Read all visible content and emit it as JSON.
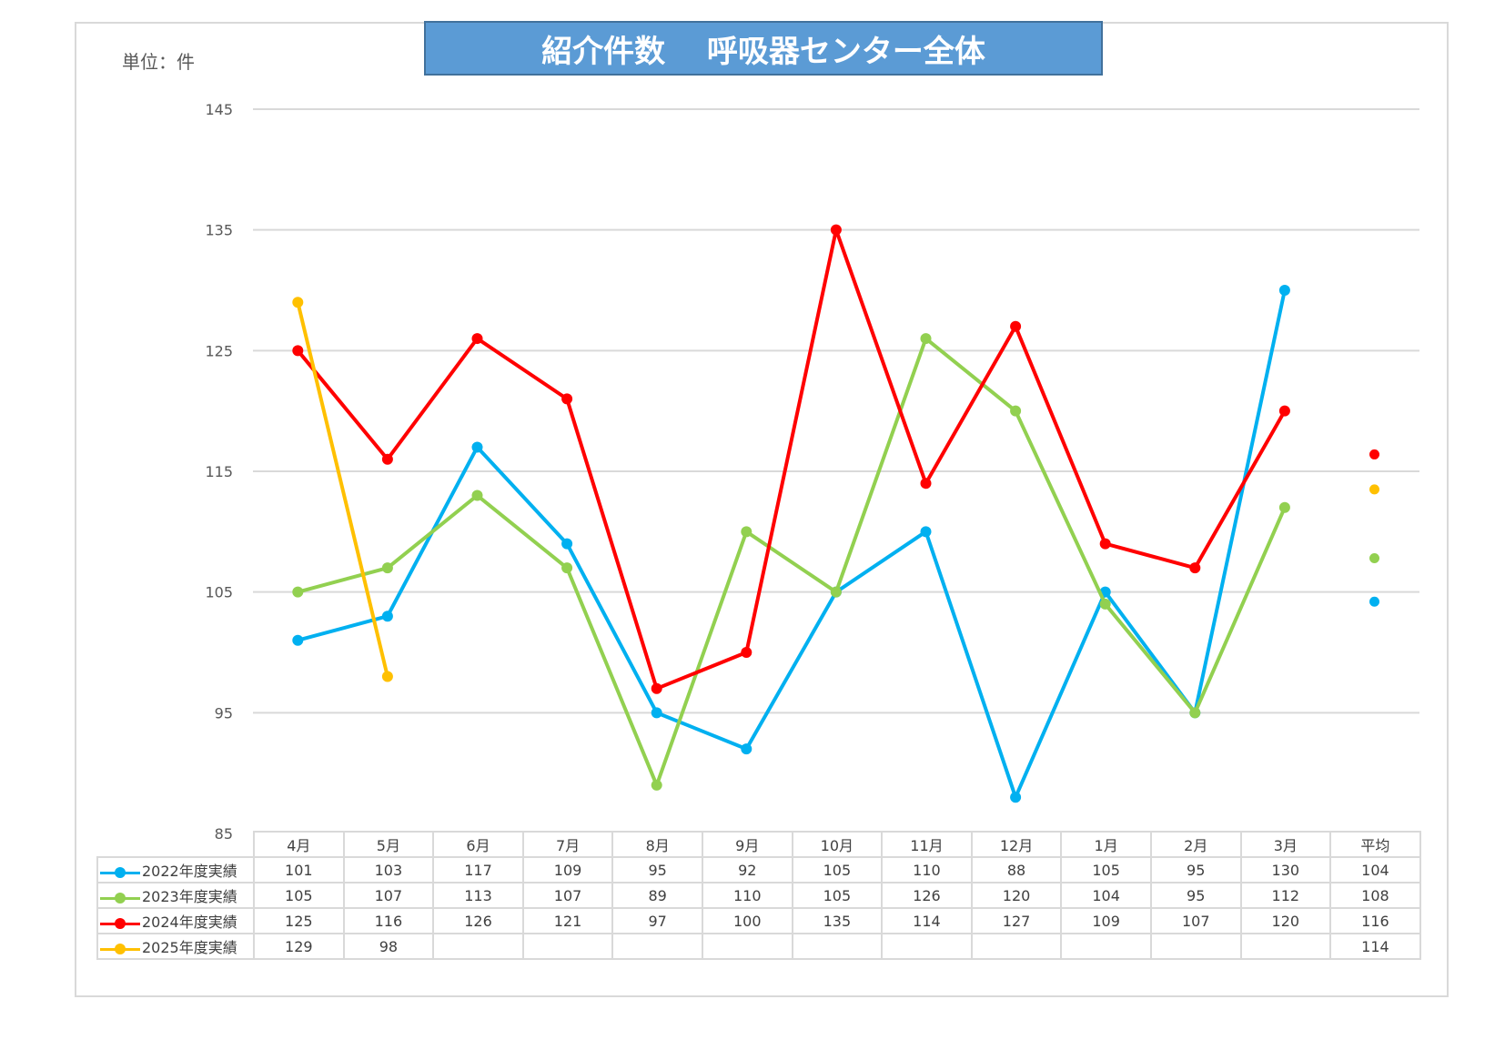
{
  "title": "紹介件数　 呼吸器センター全体",
  "unit_label": "単位：件",
  "chart_data": {
    "type": "line",
    "title": "紹介件数　 呼吸器センター全体",
    "categories": [
      "4月",
      "5月",
      "6月",
      "7月",
      "8月",
      "9月",
      "10月",
      "11月",
      "12月",
      "1月",
      "2月",
      "3月"
    ],
    "average_label": "平均",
    "ylim": [
      85,
      145
    ],
    "yticks": [
      85,
      95,
      105,
      115,
      125,
      135,
      145
    ],
    "grid": true,
    "series": [
      {
        "name": "2022年度実績",
        "color": "#00b0f0",
        "values": [
          101,
          103,
          117,
          109,
          95,
          92,
          105,
          110,
          88,
          105,
          95,
          130
        ],
        "average": 104,
        "average_plot": 104.2
      },
      {
        "name": "2023年度実績",
        "color": "#92d050",
        "values": [
          105,
          107,
          113,
          107,
          89,
          110,
          105,
          126,
          120,
          104,
          95,
          112
        ],
        "average": 108,
        "average_plot": 107.8
      },
      {
        "name": "2024年度実績",
        "color": "#ff0000",
        "values": [
          125,
          116,
          126,
          121,
          97,
          100,
          135,
          114,
          127,
          109,
          107,
          120
        ],
        "average": 116,
        "average_plot": 116.4
      },
      {
        "name": "2025年度実績",
        "color": "#ffc000",
        "values": [
          129,
          98,
          null,
          null,
          null,
          null,
          null,
          null,
          null,
          null,
          null,
          null
        ],
        "average": 114,
        "average_plot": 113.5
      }
    ]
  }
}
